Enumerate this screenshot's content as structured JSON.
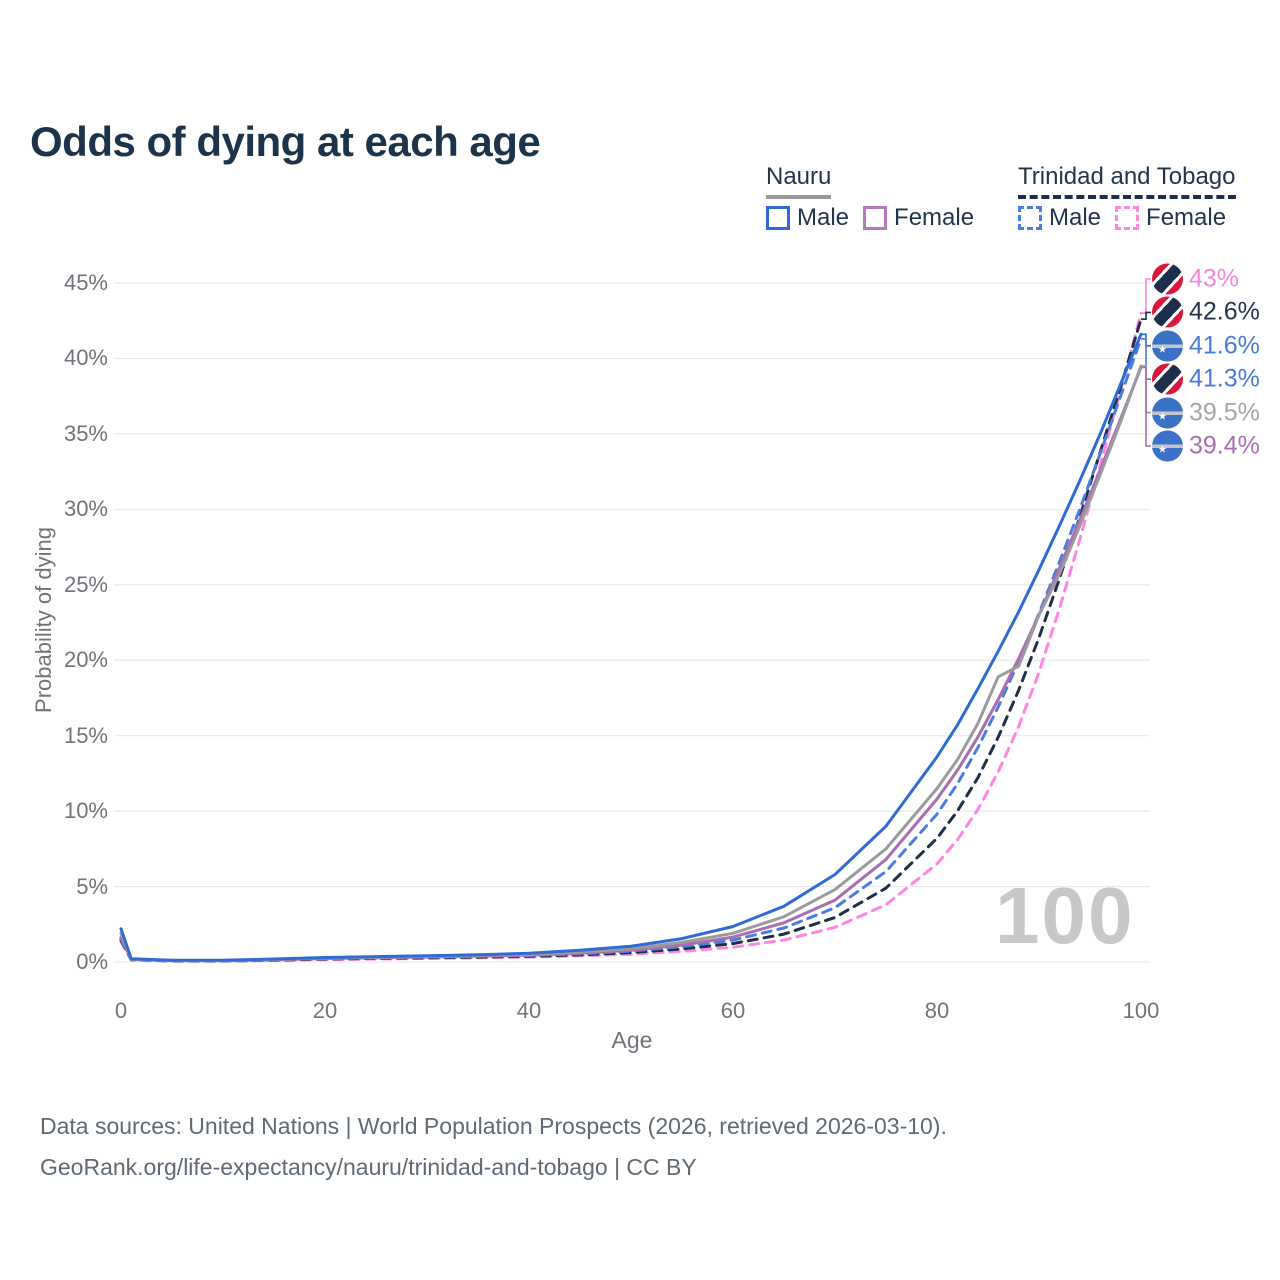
{
  "title": "Odds of dying at each age",
  "legend": {
    "groups": [
      {
        "name": "Nauru",
        "line_style": "solid",
        "underline_color": "#9a9a9b",
        "items": [
          {
            "label": "Male",
            "color": "#2e6bd4"
          },
          {
            "label": "Female",
            "color": "#b279bb"
          }
        ]
      },
      {
        "name": "Trinidad and Tobago",
        "line_style": "dashed",
        "underline_color": "#1e3048",
        "items": [
          {
            "label": "Male",
            "color": "#4b7ce2"
          },
          {
            "label": "Female",
            "color": "#ff85e2"
          }
        ]
      }
    ]
  },
  "age_marker": "100",
  "footer": {
    "line1": "Data sources: United Nations | World Population Prospects (2026, retrieved 2026-03-10).",
    "line2": "GeoRank.org/life-expectancy/nauru/trinidad-and-tobago | CC BY"
  },
  "chart_data": {
    "type": "line",
    "title": "Odds of dying at each age",
    "xlabel": "Age",
    "ylabel": "Probability of dying",
    "x_ticks": [
      0,
      20,
      40,
      60,
      80,
      100
    ],
    "y_ticks": [
      45,
      40,
      35,
      30,
      25,
      20,
      15,
      10,
      5,
      0
    ],
    "y_tick_suffix": "%",
    "xlim": [
      0,
      100
    ],
    "ylim": [
      0,
      45
    ],
    "grid": "horizontal",
    "ages": [
      0,
      1,
      5,
      10,
      15,
      20,
      25,
      30,
      35,
      40,
      45,
      50,
      55,
      60,
      65,
      70,
      75,
      80,
      82,
      84,
      86,
      88,
      90,
      92,
      94,
      96,
      98,
      100
    ],
    "series": [
      {
        "id": "tt_female",
        "name": "Trinidad and Tobago Female",
        "color": "#ff85e2",
        "dash": true,
        "values": [
          1.35,
          0.14,
          0.06,
          0.06,
          0.1,
          0.16,
          0.2,
          0.24,
          0.28,
          0.33,
          0.41,
          0.52,
          0.7,
          0.98,
          1.45,
          2.3,
          3.8,
          6.5,
          8.1,
          10.1,
          12.6,
          15.6,
          19.2,
          23.4,
          28.0,
          32.9,
          37.9,
          43.0
        ]
      },
      {
        "id": "tt_total",
        "name": "Trinidad and Tobago",
        "color": "#1e3048",
        "dash": true,
        "values": [
          1.45,
          0.15,
          0.07,
          0.07,
          0.12,
          0.2,
          0.24,
          0.28,
          0.32,
          0.38,
          0.47,
          0.62,
          0.87,
          1.22,
          1.85,
          2.95,
          4.9,
          8.2,
          10.0,
          12.2,
          14.9,
          18.0,
          21.5,
          25.4,
          29.5,
          33.8,
          38.1,
          42.6
        ]
      },
      {
        "id": "tt_male",
        "name": "Trinidad and Tobago Male",
        "color": "#4b7ce2",
        "dash": true,
        "values": [
          1.55,
          0.16,
          0.08,
          0.08,
          0.14,
          0.24,
          0.28,
          0.33,
          0.37,
          0.43,
          0.54,
          0.72,
          1.02,
          1.45,
          2.25,
          3.6,
          6.0,
          9.8,
          11.8,
          14.2,
          16.9,
          19.9,
          23.1,
          26.5,
          30.0,
          33.7,
          37.5,
          41.3
        ]
      },
      {
        "id": "nauru_female",
        "name": "Nauru Female",
        "color": "#a76fb0",
        "dash": false,
        "values": [
          1.65,
          0.17,
          0.09,
          0.09,
          0.14,
          0.23,
          0.28,
          0.33,
          0.39,
          0.46,
          0.58,
          0.78,
          1.12,
          1.65,
          2.6,
          4.1,
          6.8,
          10.8,
          12.7,
          14.9,
          17.4,
          20.1,
          23.0,
          26.1,
          29.3,
          32.6,
          36.0,
          39.4
        ]
      },
      {
        "id": "nauru_total",
        "name": "Nauru",
        "color": "#9b9b9d",
        "dash": false,
        "values": [
          1.9,
          0.19,
          0.1,
          0.1,
          0.17,
          0.27,
          0.32,
          0.37,
          0.43,
          0.5,
          0.66,
          0.88,
          1.3,
          1.9,
          3.0,
          4.8,
          7.5,
          11.5,
          13.4,
          15.8,
          18.9,
          19.6,
          23.0,
          25.7,
          28.9,
          32.3,
          35.8,
          39.5
        ]
      },
      {
        "id": "nauru_male",
        "name": "Nauru Male",
        "color": "#2e6bd4",
        "dash": false,
        "values": [
          2.2,
          0.22,
          0.12,
          0.12,
          0.2,
          0.3,
          0.36,
          0.42,
          0.48,
          0.58,
          0.78,
          1.05,
          1.55,
          2.35,
          3.7,
          5.8,
          9.0,
          13.6,
          15.7,
          18.1,
          20.6,
          23.2,
          26.0,
          28.9,
          31.9,
          35.0,
          38.3,
          41.6
        ]
      }
    ],
    "end_labels": [
      {
        "value_label": "43%",
        "series": "tt_female",
        "flag": "trinidad-and-tobago",
        "text_color": "#f287dd"
      },
      {
        "value_label": "42.6%",
        "series": "tt_total",
        "flag": "trinidad-and-tobago",
        "text_color": "#22354d"
      },
      {
        "value_label": "41.6%",
        "series": "nauru_male",
        "flag": "nauru",
        "text_color": "#4a7bd9"
      },
      {
        "value_label": "41.3%",
        "series": "tt_male",
        "flag": "trinidad-and-tobago",
        "text_color": "#4a7bd9"
      },
      {
        "value_label": "39.5%",
        "series": "nauru_total",
        "flag": "nauru",
        "text_color": "#a3a7ab"
      },
      {
        "value_label": "39.4%",
        "series": "nauru_female",
        "flag": "nauru",
        "text_color": "#a76fb0"
      }
    ]
  }
}
